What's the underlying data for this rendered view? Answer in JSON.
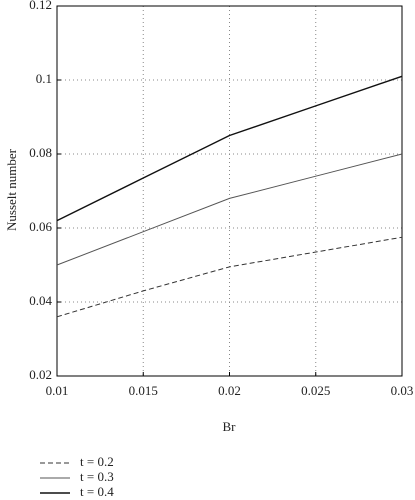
{
  "chart_data": {
    "type": "line",
    "xlabel": "Br",
    "ylabel": "Nusselt number",
    "x": [
      0.01,
      0.015,
      0.02,
      0.025,
      0.03
    ],
    "series": [
      {
        "name": "t = 0.2",
        "color": "#333333",
        "dashed": true,
        "values": [
          0.036,
          0.043,
          0.0495,
          0.0535,
          0.0575
        ]
      },
      {
        "name": "t = 0.3",
        "color": "#555555",
        "dashed": false,
        "values": [
          0.05,
          0.059,
          0.068,
          0.074,
          0.08
        ]
      },
      {
        "name": "t = 0.4",
        "color": "#111111",
        "dashed": false,
        "values": [
          0.062,
          0.0735,
          0.085,
          0.093,
          0.101
        ]
      }
    ],
    "xlim": [
      0.01,
      0.03
    ],
    "xticks": [
      0.01,
      0.015,
      0.02,
      0.025,
      0.03
    ],
    "ylim": [
      0.02,
      0.12
    ],
    "yticks": [
      0.02,
      0.04,
      0.06,
      0.08,
      0.1,
      0.12
    ],
    "grid": true
  }
}
